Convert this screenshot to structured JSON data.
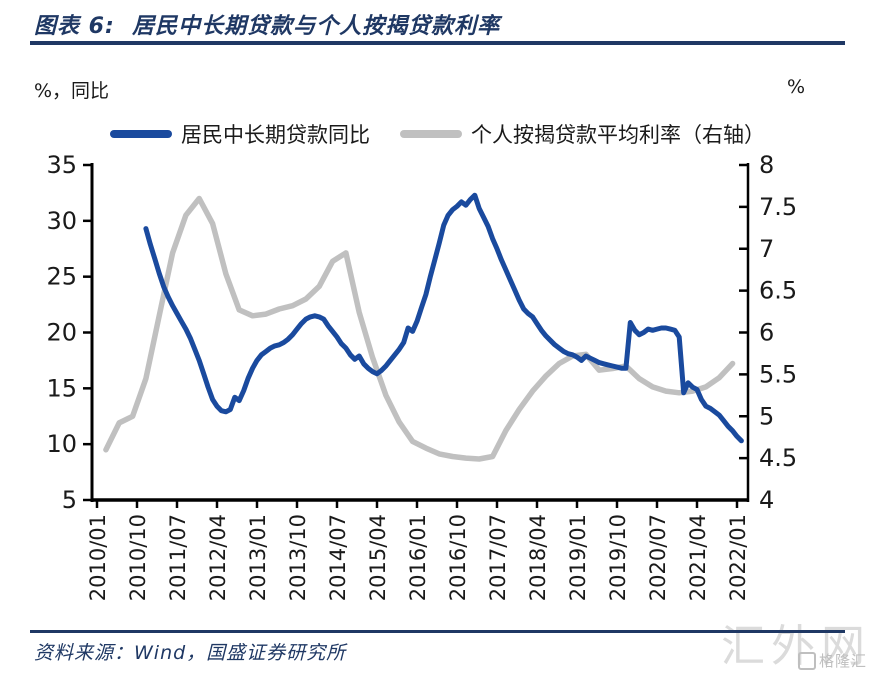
{
  "header": {
    "title": "图表 6:  居民中长期贷款与个人按揭贷款利率"
  },
  "axis_units": {
    "left": "%，同比",
    "right": "%"
  },
  "legend": [
    {
      "label": "居民中长期贷款同比",
      "color": "#1A4A9E"
    },
    {
      "label": "个人按揭贷款平均利率（右轴）",
      "color": "#C0C0C0"
    }
  ],
  "footer": {
    "source": "资料来源：Wind，国盛证券研究所"
  },
  "watermark": {
    "text": "汇外网",
    "logo": "格隆汇"
  },
  "colors": {
    "accent_navy": "#1F3864",
    "axis_black": "#000000",
    "tick_text": "#1a1a1a"
  },
  "chart_data": {
    "type": "line",
    "title": "居民中长期贷款与个人按揭贷款利率",
    "x_axis": {
      "start": "2010/01",
      "tick_step_months": 9,
      "tick_labels": [
        "2010/01",
        "2010/10",
        "2011/07",
        "2012/04",
        "2013/01",
        "2013/10",
        "2014/07",
        "2015/04",
        "2016/01",
        "2016/10",
        "2017/07",
        "2018/04",
        "2019/01",
        "2019/10",
        "2020/07",
        "2021/04",
        "2022/01"
      ]
    },
    "left_axis": {
      "label": "%，同比",
      "min": 5,
      "max": 35,
      "ticks": [
        5,
        10,
        15,
        20,
        25,
        30,
        35
      ]
    },
    "right_axis": {
      "label": "%",
      "min": 4,
      "max": 8,
      "ticks": [
        4,
        4.5,
        5,
        5.5,
        6,
        6.5,
        7,
        7.5,
        8
      ]
    },
    "grid": false,
    "legend_position": "top",
    "series": [
      {
        "name": "居民中长期贷款同比",
        "axis": "left",
        "color": "#1A4A9E",
        "start": "2010/12",
        "step_months": 1,
        "values": [
          29.3,
          27.9,
          26.6,
          25.3,
          24.1,
          23.2,
          22.4,
          21.7,
          21.0,
          20.3,
          19.5,
          18.5,
          17.5,
          16.3,
          15.1,
          14.0,
          13.4,
          13.0,
          12.9,
          13.1,
          14.2,
          13.9,
          14.8,
          15.9,
          16.8,
          17.5,
          18.0,
          18.3,
          18.6,
          18.8,
          18.9,
          19.1,
          19.4,
          19.8,
          20.3,
          20.8,
          21.2,
          21.4,
          21.5,
          21.4,
          21.2,
          20.6,
          20.1,
          19.6,
          19.0,
          18.6,
          18.0,
          17.6,
          17.9,
          17.2,
          16.8,
          16.5,
          16.3,
          16.6,
          17.0,
          17.5,
          18.0,
          18.5,
          19.1,
          20.4,
          20.1,
          21.0,
          22.2,
          23.4,
          25.0,
          26.5,
          28.0,
          29.6,
          30.5,
          31.0,
          31.3,
          31.7,
          31.4,
          31.9,
          32.3,
          31.1,
          30.3,
          29.5,
          28.4,
          27.5,
          26.5,
          25.6,
          24.7,
          23.8,
          22.9,
          22.1,
          21.7,
          21.4,
          20.8,
          20.2,
          19.7,
          19.3,
          18.9,
          18.6,
          18.3,
          18.1,
          18.0,
          17.8,
          17.5,
          17.9,
          17.7,
          17.5,
          17.3,
          17.2,
          17.1,
          17.0,
          16.9,
          16.8,
          16.8,
          20.9,
          20.2,
          19.8,
          20.0,
          20.3,
          20.2,
          20.3,
          20.4,
          20.4,
          20.3,
          20.2,
          19.6,
          14.6,
          15.5,
          15.1,
          14.9,
          14.0,
          13.4,
          13.2,
          12.9,
          12.6,
          12.1,
          11.6,
          11.2,
          10.7,
          10.3
        ]
      },
      {
        "name": "个人按揭贷款平均利率（右轴）",
        "axis": "right",
        "color": "#C0C0C0",
        "start": "2010/03",
        "step_months": 3,
        "values": [
          4.6,
          4.92,
          5.0,
          5.45,
          6.2,
          6.95,
          7.4,
          7.6,
          7.3,
          6.7,
          6.27,
          6.2,
          6.22,
          6.28,
          6.32,
          6.4,
          6.55,
          6.85,
          6.95,
          6.24,
          5.7,
          5.25,
          4.93,
          4.7,
          4.62,
          4.55,
          4.52,
          4.5,
          4.49,
          4.52,
          4.83,
          5.08,
          5.3,
          5.48,
          5.63,
          5.72,
          5.74,
          5.55,
          5.57,
          5.6,
          5.45,
          5.35,
          5.3,
          5.28,
          5.3,
          5.35,
          5.46,
          5.63
        ]
      }
    ]
  }
}
